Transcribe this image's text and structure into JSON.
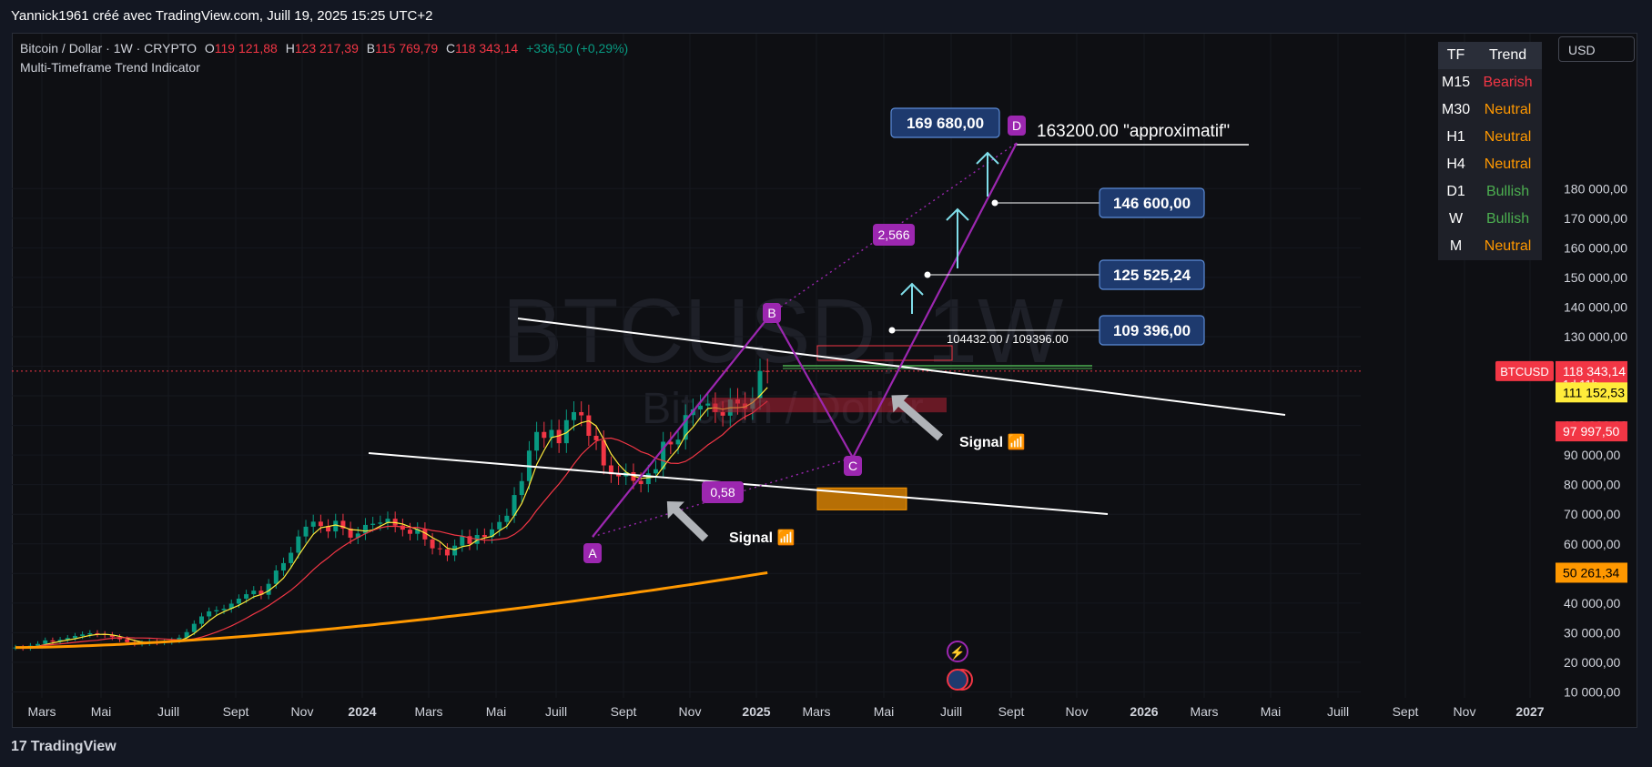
{
  "header": {
    "author_line": "Yannick1961 créé avec TradingView.com, Juill 19, 2025 15:25 UTC+2"
  },
  "symbol": {
    "name": "Bitcoin / Dollar · 1W · CRYPTO",
    "o_label": "O",
    "o": "119 121,88",
    "h_label": "H",
    "h": "123 217,39",
    "b_label": "B",
    "b": "115 769,79",
    "c_label": "C",
    "c": "118 343,14",
    "change": "+336,50 (+0,29%)"
  },
  "indicator": {
    "name": "Multi-Timeframe Trend Indicator"
  },
  "toolbar": {
    "currency": "USD"
  },
  "trend_table": {
    "headers": [
      "TF",
      "Trend"
    ],
    "rows": [
      {
        "tf": "M15",
        "trend": "Bearish",
        "color": "#f23645"
      },
      {
        "tf": "M30",
        "trend": "Neutral",
        "color": "#ff9800"
      },
      {
        "tf": "H1",
        "trend": "Neutral",
        "color": "#ff9800"
      },
      {
        "tf": "H4",
        "trend": "Neutral",
        "color": "#ff9800"
      },
      {
        "tf": "D1",
        "trend": "Bullish",
        "color": "#4caf50"
      },
      {
        "tf": "W",
        "trend": "Bullish",
        "color": "#4caf50"
      },
      {
        "tf": "M",
        "trend": "Neutral",
        "color": "#ff9800"
      }
    ]
  },
  "watermark": {
    "symbol": "BTCUSD, 1W",
    "name": "Bitcoin / Dollar"
  },
  "branding": {
    "logo": "TradingView",
    "logo_glyph": "17"
  },
  "chart_data": {
    "type": "candlestick",
    "yaxis_ticks": [
      10000,
      20000,
      30000,
      40000,
      50000,
      60000,
      70000,
      80000,
      90000,
      100000,
      110000,
      120000,
      130000,
      140000,
      150000,
      160000,
      170000,
      180000
    ],
    "yaxis_tick_labels": [
      "10 000,00",
      "20 000,00",
      "30 000,00",
      "40 000,00",
      "50 000,00",
      "60 000,00",
      "70 000,00",
      "80 000,00",
      "90 000,00",
      "100 000,00",
      "110 000,00",
      "120 000,00",
      "130 000,00",
      "140 000,00",
      "150 000,00",
      "160 000,00",
      "170 000,00",
      "180 000,00"
    ],
    "xaxis_labels": [
      "Mars",
      "Mai",
      "Juill",
      "Sept",
      "Nov",
      "2024",
      "Mars",
      "Mai",
      "Juill",
      "Sept",
      "Nov",
      "2025",
      "Mars",
      "Mai",
      "Juill",
      "Sept",
      "Nov",
      "2026",
      "Mars",
      "Mai",
      "Juill",
      "Sept",
      "Nov",
      "2027"
    ],
    "xaxis_bold": [
      "2024",
      "2025",
      "2026",
      "2027"
    ],
    "price_tags": [
      {
        "label": "BTCUSD",
        "value": "118 343,14",
        "sub": "1d 11h",
        "color": "#f23645"
      },
      {
        "value": "111 152,53",
        "color": "#ffeb3b"
      },
      {
        "value": "97 997,50",
        "color": "#f23645"
      },
      {
        "value": "50 261,34",
        "color": "#ff9800"
      }
    ],
    "target_boxes": [
      "169 680,00",
      "146 600,00",
      "125 525,24",
      "109 396,00"
    ],
    "annotations": {
      "target_text": "163200.00 \"approximatif\"",
      "zone_text": "104432.00 / 109396.00",
      "ratio_1": "2,566",
      "ratio_2": "0,58",
      "signal_1": "Signal 📶",
      "signal_2": "Signal 📶"
    },
    "points": [
      "A",
      "B",
      "C",
      "D"
    ],
    "weekly_closes": [
      25000,
      24800,
      25600,
      26200,
      27400,
      27000,
      27600,
      28200,
      28900,
      29400,
      29800,
      29500,
      29200,
      28500,
      27800,
      26800,
      26300,
      26500,
      27000,
      26700,
      26900,
      27400,
      28300,
      30200,
      33000,
      35500,
      37200,
      37600,
      38100,
      39800,
      41500,
      43000,
      44200,
      42800,
      46500,
      51000,
      53500,
      57000,
      62500,
      65800,
      67500,
      66000,
      64200,
      67800,
      65200,
      62100,
      63500,
      66400,
      66800,
      67200,
      68500,
      66200,
      64800,
      63400,
      65000,
      61500,
      58500,
      58200,
      56100,
      59400,
      62600,
      60000,
      63000,
      62300,
      64900,
      67400,
      69500,
      76500,
      81200,
      91500,
      97800,
      95800,
      98500,
      94000,
      101800,
      104500,
      103400,
      96500,
      95000,
      86500,
      83500,
      82800,
      84200,
      81300,
      80200,
      83800,
      85200,
      94500,
      93600,
      95200,
      103500,
      105400,
      106700,
      107400,
      104500,
      103300,
      108800,
      107400,
      105600,
      109100,
      118400,
      118343
    ]
  }
}
